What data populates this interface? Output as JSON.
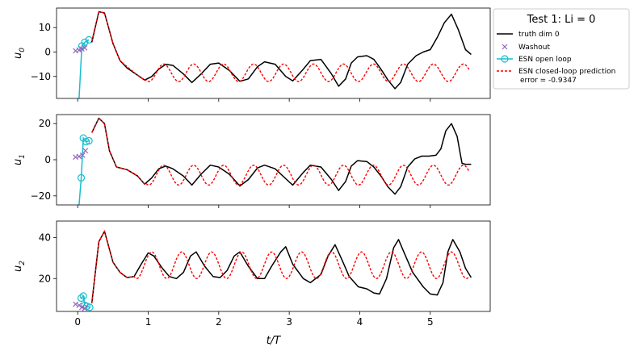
{
  "chart_data": {
    "type": "line",
    "xlabel": "t/T",
    "xlim": [
      -0.3,
      5.85
    ],
    "xticks": [
      0,
      1,
      2,
      3,
      4,
      5
    ],
    "legend": {
      "title": "Test 1: Li = 0",
      "placement": "right-outside-top",
      "entries": [
        {
          "label": "truth dim 0",
          "style": "line",
          "color": "#000000"
        },
        {
          "label": "Washout",
          "style": "x-marker",
          "color": "#9467bd"
        },
        {
          "label": "ESN open loop",
          "style": "line-circle",
          "color": "#17becf"
        },
        {
          "label": "ESN closed-loop prediction",
          "label2": "error = -0.9347",
          "style": "dashed",
          "color": "#ff0000"
        }
      ]
    },
    "colors": {
      "truth": "#000000",
      "washout": "#9467bd",
      "open_loop": "#17becf",
      "closed_loop": "#ff0000"
    },
    "subplots": [
      {
        "ylabel": "u_0",
        "ylim": [
          -19,
          18
        ],
        "yticks": [
          -10,
          0,
          10
        ],
        "truth": [
          [
            0.2,
            4
          ],
          [
            0.3,
            16.5
          ],
          [
            0.38,
            16
          ],
          [
            0.5,
            3.5
          ],
          [
            0.6,
            -3.5
          ],
          [
            0.7,
            -6.5
          ],
          [
            0.85,
            -9.5
          ],
          [
            0.95,
            -11.5
          ],
          [
            1.05,
            -10
          ],
          [
            1.15,
            -7
          ],
          [
            1.25,
            -5
          ],
          [
            1.35,
            -5.5
          ],
          [
            1.5,
            -9
          ],
          [
            1.62,
            -12.5
          ],
          [
            1.75,
            -9
          ],
          [
            1.88,
            -5
          ],
          [
            2.0,
            -4.5
          ],
          [
            2.15,
            -7.5
          ],
          [
            2.3,
            -12
          ],
          [
            2.42,
            -11
          ],
          [
            2.55,
            -6
          ],
          [
            2.65,
            -4
          ],
          [
            2.8,
            -5
          ],
          [
            2.95,
            -10
          ],
          [
            3.05,
            -11.8
          ],
          [
            3.2,
            -7
          ],
          [
            3.3,
            -3.5
          ],
          [
            3.45,
            -3
          ],
          [
            3.6,
            -9
          ],
          [
            3.7,
            -14
          ],
          [
            3.8,
            -11
          ],
          [
            3.88,
            -4.5
          ],
          [
            3.97,
            -2
          ],
          [
            4.1,
            -1.5
          ],
          [
            4.2,
            -3
          ],
          [
            4.3,
            -7
          ],
          [
            4.4,
            -11.5
          ],
          [
            4.5,
            -15
          ],
          [
            4.58,
            -12.5
          ],
          [
            4.68,
            -5
          ],
          [
            4.8,
            -1.5
          ],
          [
            4.9,
            0
          ],
          [
            5.0,
            1
          ],
          [
            5.1,
            6
          ],
          [
            5.2,
            12
          ],
          [
            5.3,
            15.5
          ],
          [
            5.4,
            9
          ],
          [
            5.5,
            1
          ],
          [
            5.58,
            -1
          ]
        ],
        "washout": [
          [
            -0.03,
            0.5
          ],
          [
            0.02,
            0.8
          ],
          [
            0.06,
            1.3
          ],
          [
            0.1,
            1.7
          ]
        ],
        "open_loop": [
          [
            0.02,
            -19
          ],
          [
            0.06,
            2.5
          ],
          [
            0.1,
            4
          ],
          [
            0.16,
            5
          ]
        ],
        "closed_loop": {
          "start": 0.2,
          "end": 5.55,
          "pre": [
            [
              0.2,
              4.5
            ],
            [
              0.3,
              16.5
            ],
            [
              0.38,
              16
            ],
            [
              0.5,
              3.5
            ],
            [
              0.6,
              -3.5
            ],
            [
              0.7,
              -6
            ],
            [
              0.85,
              -9.5
            ],
            [
              0.95,
              -11.5
            ]
          ],
          "mean": -8.5,
          "amp": 3.6,
          "period": 0.425,
          "peak": 1.22,
          "phase_drift": -0.01
        }
      },
      {
        "ylabel": "u_1",
        "ylim": [
          -25,
          25
        ],
        "yticks": [
          -20,
          0,
          20
        ],
        "truth": [
          [
            0.2,
            15
          ],
          [
            0.3,
            23
          ],
          [
            0.38,
            20
          ],
          [
            0.45,
            5
          ],
          [
            0.55,
            -4
          ],
          [
            0.7,
            -5.5
          ],
          [
            0.85,
            -9
          ],
          [
            0.95,
            -13.5
          ],
          [
            1.05,
            -10
          ],
          [
            1.15,
            -5
          ],
          [
            1.25,
            -3.5
          ],
          [
            1.35,
            -5
          ],
          [
            1.5,
            -9
          ],
          [
            1.62,
            -14
          ],
          [
            1.75,
            -8
          ],
          [
            1.88,
            -3
          ],
          [
            2.0,
            -4
          ],
          [
            2.15,
            -8
          ],
          [
            2.3,
            -14.5
          ],
          [
            2.42,
            -11
          ],
          [
            2.55,
            -4.5
          ],
          [
            2.65,
            -3
          ],
          [
            2.8,
            -5
          ],
          [
            2.95,
            -10.5
          ],
          [
            3.05,
            -14
          ],
          [
            3.2,
            -7
          ],
          [
            3.3,
            -3
          ],
          [
            3.45,
            -4
          ],
          [
            3.6,
            -11
          ],
          [
            3.7,
            -17
          ],
          [
            3.8,
            -12
          ],
          [
            3.88,
            -3.5
          ],
          [
            3.97,
            -0.5
          ],
          [
            4.1,
            -1
          ],
          [
            4.2,
            -4
          ],
          [
            4.3,
            -9
          ],
          [
            4.4,
            -15
          ],
          [
            4.5,
            -19
          ],
          [
            4.58,
            -15
          ],
          [
            4.68,
            -4
          ],
          [
            4.78,
            0.5
          ],
          [
            4.88,
            2
          ],
          [
            4.98,
            2
          ],
          [
            5.08,
            2.5
          ],
          [
            5.15,
            6
          ],
          [
            5.22,
            16
          ],
          [
            5.3,
            20
          ],
          [
            5.38,
            13
          ],
          [
            5.45,
            -2
          ],
          [
            5.5,
            -2.5
          ],
          [
            5.58,
            -2.5
          ]
        ],
        "washout": [
          [
            -0.03,
            1.5
          ],
          [
            0.02,
            1.8
          ],
          [
            0.07,
            2.5
          ],
          [
            0.11,
            5
          ]
        ],
        "open_loop": [
          [
            0.02,
            -25
          ],
          [
            0.05,
            -10
          ],
          [
            0.08,
            12
          ],
          [
            0.12,
            10
          ],
          [
            0.16,
            10.5
          ]
        ],
        "closed_loop": {
          "start": 0.2,
          "end": 5.55,
          "pre": [
            [
              0.2,
              15
            ],
            [
              0.3,
              23
            ],
            [
              0.38,
              20
            ],
            [
              0.45,
              5
            ],
            [
              0.55,
              -4
            ],
            [
              0.7,
              -5.5
            ],
            [
              0.85,
              -9
            ],
            [
              0.95,
              -13.5
            ]
          ],
          "mean": -8.5,
          "amp": 5.5,
          "period": 0.425,
          "peak": 1.22,
          "phase_drift": -0.01
        }
      },
      {
        "ylabel": "u_2",
        "ylim": [
          4,
          48
        ],
        "yticks": [
          20,
          40
        ],
        "truth": [
          [
            0.2,
            8
          ],
          [
            0.3,
            38
          ],
          [
            0.38,
            43
          ],
          [
            0.5,
            28
          ],
          [
            0.6,
            23
          ],
          [
            0.7,
            20.5
          ],
          [
            0.8,
            21
          ],
          [
            0.9,
            27
          ],
          [
            1.0,
            32.5
          ],
          [
            1.08,
            31
          ],
          [
            1.2,
            25
          ],
          [
            1.3,
            21
          ],
          [
            1.4,
            20
          ],
          [
            1.5,
            23
          ],
          [
            1.6,
            31
          ],
          [
            1.68,
            33
          ],
          [
            1.8,
            26
          ],
          [
            1.92,
            21
          ],
          [
            2.02,
            20.5
          ],
          [
            2.12,
            24
          ],
          [
            2.22,
            31
          ],
          [
            2.3,
            33
          ],
          [
            2.42,
            26
          ],
          [
            2.55,
            20
          ],
          [
            2.65,
            20
          ],
          [
            2.75,
            26
          ],
          [
            2.88,
            33
          ],
          [
            2.95,
            35.5
          ],
          [
            3.05,
            27
          ],
          [
            3.2,
            20
          ],
          [
            3.3,
            18
          ],
          [
            3.45,
            22
          ],
          [
            3.55,
            31
          ],
          [
            3.65,
            36.5
          ],
          [
            3.75,
            29
          ],
          [
            3.85,
            21
          ],
          [
            3.98,
            16
          ],
          [
            4.1,
            15
          ],
          [
            4.2,
            13
          ],
          [
            4.28,
            12.5
          ],
          [
            4.38,
            20
          ],
          [
            4.48,
            35
          ],
          [
            4.55,
            39
          ],
          [
            4.65,
            31
          ],
          [
            4.75,
            23
          ],
          [
            4.9,
            16
          ],
          [
            5.0,
            12.5
          ],
          [
            5.1,
            12
          ],
          [
            5.18,
            18
          ],
          [
            5.25,
            33
          ],
          [
            5.32,
            39
          ],
          [
            5.42,
            33
          ],
          [
            5.5,
            25
          ],
          [
            5.58,
            20.5
          ]
        ],
        "washout": [
          [
            -0.03,
            7.5
          ],
          [
            0.02,
            7
          ],
          [
            0.06,
            6
          ],
          [
            0.1,
            5.5
          ]
        ],
        "open_loop": [
          [
            0.05,
            10.5
          ],
          [
            0.08,
            11.5
          ],
          [
            0.1,
            7
          ],
          [
            0.13,
            6.5
          ],
          [
            0.17,
            6
          ]
        ],
        "closed_loop": {
          "start": 0.2,
          "end": 5.55,
          "pre": [
            [
              0.2,
              8
            ],
            [
              0.3,
              38
            ],
            [
              0.38,
              43
            ],
            [
              0.5,
              28
            ],
            [
              0.6,
              23
            ],
            [
              0.7,
              20.5
            ],
            [
              0.8,
              21
            ]
          ],
          "mean": 26.5,
          "amp": 6.5,
          "period": 0.425,
          "peak": 1.05,
          "phase_drift": -0.01
        }
      }
    ]
  }
}
